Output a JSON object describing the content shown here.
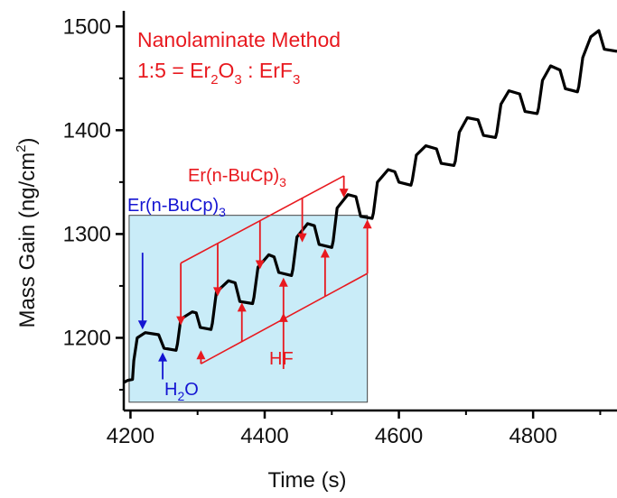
{
  "chart_data": {
    "type": "line",
    "xlabel": "Time (s)",
    "ylabel": "Mass Gain (ng/cm",
    "ylabel_sup": "2",
    "ylabel_end": ")",
    "xlim": [
      4190,
      4925
    ],
    "ylim": [
      1130,
      1515
    ],
    "xticks": [
      4200,
      4400,
      4600,
      4800
    ],
    "yticks": [
      1200,
      1300,
      1400,
      1500
    ],
    "xtick_labels": [
      "4200",
      "4400",
      "4600",
      "4800"
    ],
    "ytick_labels": [
      "1200",
      "1300",
      "1400",
      "1500"
    ],
    "grid": false,
    "series": [
      {
        "color": "#000000",
        "x": [
          4190,
          4196,
          4203,
          4205,
          4210,
          4222,
          4242,
          4250,
          4268,
          4270,
          4275,
          4292,
          4298,
          4304,
          4320,
          4322,
          4328,
          4346,
          4356,
          4363,
          4382,
          4384,
          4390,
          4406,
          4414,
          4421,
          4440,
          4442,
          4448,
          4464,
          4474,
          4481,
          4500,
          4502,
          4508,
          4524,
          4536,
          4543,
          4560,
          4562,
          4568,
          4584,
          4594,
          4600,
          4618,
          4620,
          4626,
          4640,
          4656,
          4663,
          4682,
          4684,
          4690,
          4702,
          4718,
          4726,
          4744,
          4746,
          4752,
          4764,
          4780,
          4788,
          4806,
          4808,
          4814,
          4826,
          4840,
          4848,
          4866,
          4868,
          4874,
          4886,
          4898,
          4906,
          4925
        ],
        "y": [
          1157,
          1159,
          1160,
          1178,
          1200,
          1205,
          1203,
          1190,
          1188,
          1194,
          1218,
          1225,
          1224,
          1210,
          1208,
          1214,
          1244,
          1255,
          1253,
          1235,
          1233,
          1239,
          1268,
          1280,
          1278,
          1263,
          1260,
          1266,
          1297,
          1310,
          1308,
          1290,
          1287,
          1293,
          1325,
          1338,
          1336,
          1317,
          1315,
          1320,
          1350,
          1362,
          1360,
          1350,
          1347,
          1352,
          1376,
          1385,
          1382,
          1368,
          1366,
          1370,
          1398,
          1412,
          1410,
          1395,
          1393,
          1398,
          1425,
          1438,
          1435,
          1418,
          1416,
          1421,
          1448,
          1462,
          1458,
          1440,
          1437,
          1442,
          1470,
          1490,
          1496,
          1478,
          1476
        ]
      }
    ],
    "inset": {
      "x0": 4198,
      "x1": 4553,
      "y0": 1138,
      "y1": 1318,
      "fill": "#c9ecf8",
      "stroke": "#444444"
    },
    "annotations": {
      "title_line1": "Nanolaminate Method",
      "title_line2_prefix": "1:5 = Er",
      "title_sub1": "2",
      "title_mid1": "O",
      "title_sub2": "3",
      "title_mid2": " : ErF",
      "title_sub3": "3",
      "title_color": "#e8191f",
      "precursor_red_base": "Er(n-BuCp)",
      "precursor_red_sub": "3",
      "precursor_blue_base": "Er(n-BuCp)",
      "precursor_blue_sub": "3",
      "water_base": "H",
      "water_sub": "2",
      "water_end": "O",
      "hf_label": "HF",
      "red_color": "#e8191f",
      "blue_color": "#1414d2"
    }
  }
}
